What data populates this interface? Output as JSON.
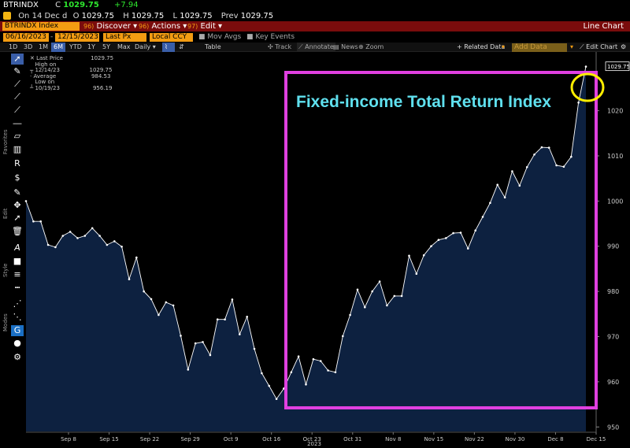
{
  "header": {
    "ticker": "BTRINDX",
    "close_label": "C",
    "last_price": "1029.75",
    "change": "+7.94",
    "on_label": "On",
    "on_date": "14 Dec",
    "d_label": "d",
    "open_label": "O",
    "open_value": "1029.75",
    "high_label": "H",
    "high_value": "1029.75",
    "low_label": "L",
    "low_value": "1029.75",
    "prev_label": "Prev",
    "prev_value": "1029.75"
  },
  "menubar": {
    "security": "BTRINDX Index",
    "discover_num": "96)",
    "discover": "Discover",
    "actions_num": "96)",
    "actions": "Actions",
    "edit_num": "97)",
    "edit": "Edit",
    "title": "Line Chart"
  },
  "controls": {
    "start_date": "06/16/2023",
    "end_date": "12/15/2023",
    "field": "Last Px",
    "currency": "Local CCY",
    "mov_avgs": "Mov Avgs",
    "key_events": "Key Events"
  },
  "toolbar": {
    "periods": [
      "1D",
      "3D",
      "1M",
      "6M",
      "YTD",
      "1Y",
      "5Y",
      "Max"
    ],
    "selected_period": "6M",
    "frequency": "Daily",
    "table": "Table",
    "track": "Track",
    "annotate": "Annotate",
    "news": "News",
    "zoom": "Zoom",
    "related_data": "+ Related Data",
    "add_data": "Add Data",
    "edit_chart": "Edit Chart"
  },
  "sidebar": {
    "favorites": "Favorites",
    "edit": "Edit",
    "style": "Style",
    "modes": "Modes"
  },
  "legend": [
    {
      "label": "Last Price",
      "value": "1029.75"
    },
    {
      "label": "High on 12/14/23",
      "value": "1029.75"
    },
    {
      "label": "Average",
      "value": "984.53"
    },
    {
      "label": "Low on 10/19/23",
      "value": "956.19"
    }
  ],
  "annotation": {
    "text": "Fixed-income Total Return Index",
    "box_color": "#e040e0",
    "circle_color": "#ffee00",
    "text_color": "#5fe0ee"
  },
  "colors": {
    "accent": "#f39c12",
    "menu_bg": "#7a0c0c",
    "area_fill": "#0d2140",
    "line": "#ffffff",
    "positive": "#2ee62e"
  },
  "chart_data": {
    "type": "area",
    "y_ticks": [
      950,
      960,
      970,
      980,
      990,
      1000,
      1010,
      1020
    ],
    "ylim": [
      949,
      1033
    ],
    "x_tick_labels": [
      "Sep 8",
      "Sep 15",
      "Sep 22",
      "Sep 29",
      "Oct 9",
      "Oct 16",
      "Oct 23",
      "Oct 31",
      "Nov 8",
      "Nov 15",
      "Nov 22",
      "Nov 30",
      "Dec 8",
      "Dec 15"
    ],
    "x_year_label": "2023",
    "last_value_label": "1029.75",
    "series": [
      {
        "values": [
          1000.0,
          995.5,
          995.5,
          990.3,
          989.8,
          992.3,
          993.2,
          991.8,
          992.3,
          994.0,
          992.3,
          990.3,
          991.1,
          989.9,
          982.7,
          987.5,
          980.0,
          978.3,
          974.8,
          977.6,
          976.9,
          970.2,
          962.7,
          968.5,
          968.8,
          965.9,
          973.8,
          973.8,
          978.2,
          970.5,
          974.4,
          967.3,
          961.9,
          959.1,
          956.2,
          958.5,
          962.1,
          965.6,
          959.4,
          965.0,
          964.6,
          962.5,
          962.1,
          970.1,
          974.8,
          980.4,
          976.5,
          980.0,
          982.2,
          976.9,
          979.0,
          979.0,
          987.9,
          983.9,
          988.0,
          990.0,
          991.4,
          991.8,
          992.9,
          993.0,
          989.5,
          993.5,
          996.5,
          999.6,
          1003.6,
          1000.8,
          1006.6,
          1003.4,
          1007.5,
          1010.3,
          1011.9,
          1011.8,
          1007.9,
          1007.6,
          1009.8,
          1021.8,
          1029.75
        ]
      }
    ]
  }
}
